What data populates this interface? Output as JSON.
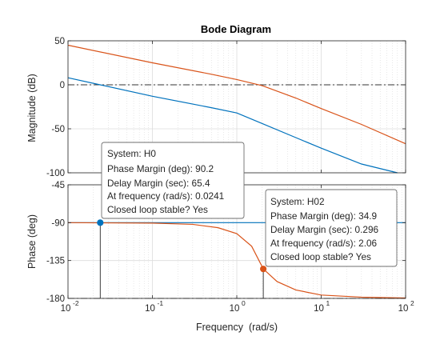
{
  "chart_data": {
    "type": "line",
    "title": "Bode Diagram",
    "xlabel": "Frequency  (rad/s)",
    "x_scale": "log",
    "xlim": [
      0.01,
      100
    ],
    "x_ticks": [
      0.01,
      0.1,
      1,
      10,
      100
    ],
    "x_tick_labels": [
      {
        "base": "10",
        "exp": "-2"
      },
      {
        "base": "10",
        "exp": "-1"
      },
      {
        "base": "10",
        "exp": "0"
      },
      {
        "base": "10",
        "exp": "1"
      },
      {
        "base": "10",
        "exp": "2"
      }
    ],
    "grid": true,
    "panels": {
      "magnitude": {
        "ylabel": "Magnitude (dB)",
        "ylim": [
          -100,
          50
        ],
        "y_ticks": [
          50,
          0,
          -50,
          -100
        ],
        "reference_line": 0,
        "series": [
          {
            "color": "#D95319",
            "x": [
              0.01,
              0.1,
              0.5,
              1,
              2,
              5,
              10,
              30,
              100
            ],
            "y": [
              45,
              25,
              12,
              6,
              -1,
              -15,
              -27,
              -45,
              -67
            ]
          },
          {
            "color": "#0072BD",
            "x": [
              0.01,
              0.024,
              0.1,
              0.5,
              1,
              2,
              5,
              10,
              30,
              80
            ],
            "y": [
              8,
              0,
              -13,
              -26,
              -32,
              -44,
              -60,
              -72,
              -90,
              -100
            ]
          }
        ]
      },
      "phase": {
        "ylabel": "Phase (deg)",
        "ylim": [
          -180,
          -45
        ],
        "y_ticks": [
          -45,
          -90,
          -135,
          -180
        ],
        "reference_line": -180,
        "series": [
          {
            "color": "#0072BD",
            "x": [
              0.01,
              100
            ],
            "y": [
              -90,
              -90
            ]
          },
          {
            "color": "#D95319",
            "x": [
              0.01,
              0.1,
              0.3,
              0.6,
              1,
              1.5,
              2.06,
              3,
              5,
              10,
              30,
              100
            ],
            "y": [
              -90,
              -90.5,
              -92,
              -96,
              -103,
              -118,
              -145,
              -160,
              -170,
              -176,
              -178.5,
              -179.5
            ]
          }
        ]
      }
    },
    "markers": [
      {
        "panel": "phase",
        "color": "#0072BD",
        "x": 0.0241,
        "y": -90
      },
      {
        "panel": "phase",
        "color": "#D95319",
        "x": 2.06,
        "y": -145
      }
    ],
    "datatips": [
      {
        "system": "System: H0",
        "pm": "Phase Margin (deg): 90.2",
        "dm": "Delay Margin (sec): 65.4",
        "freq": "At frequency (rad/s): 0.0241",
        "stable": "Closed loop stable? Yes"
      },
      {
        "system": "System: H02",
        "pm": "Phase Margin (deg): 34.9",
        "dm": "Delay Margin (sec): 0.296",
        "freq": "At frequency (rad/s): 2.06",
        "stable": "Closed loop stable? Yes"
      }
    ]
  }
}
